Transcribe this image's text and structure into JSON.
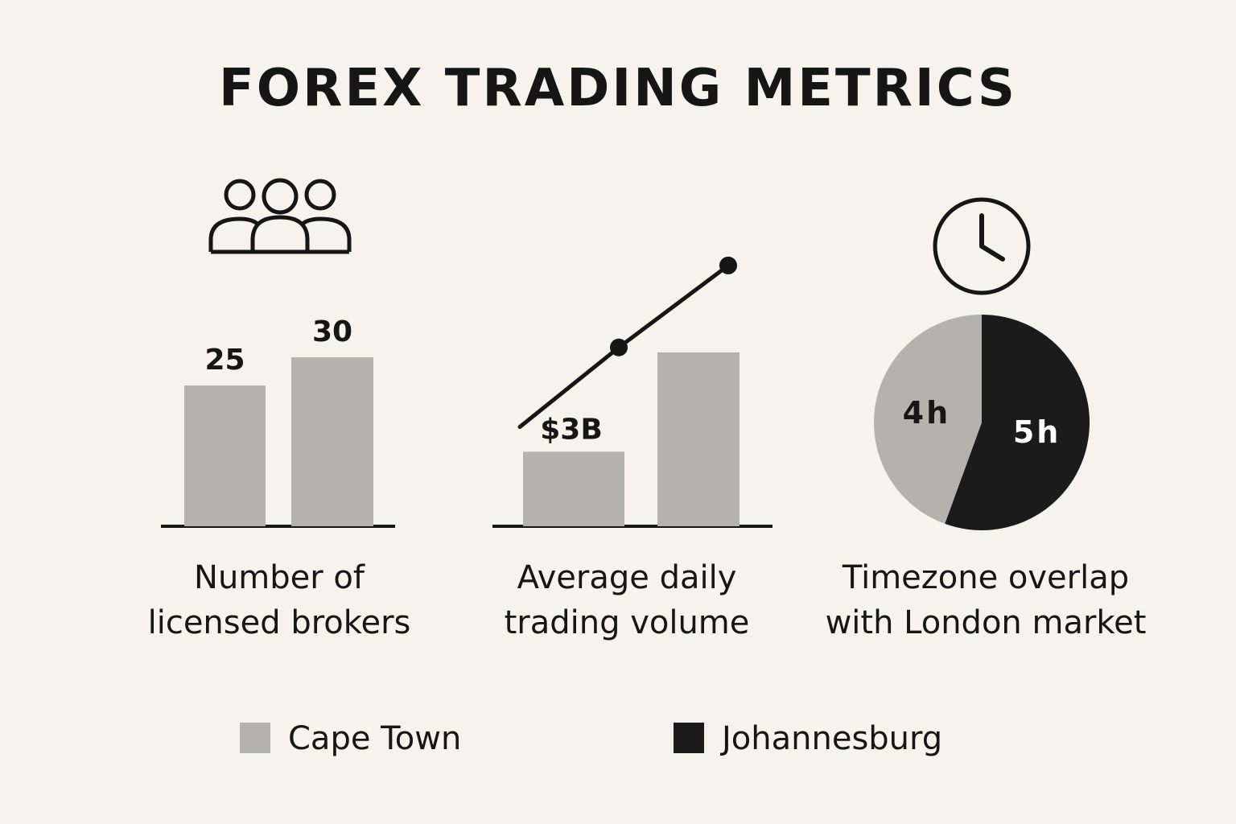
{
  "title": "FOREX TRADING METRICS",
  "colors": {
    "cape_town": "#b3b2ae",
    "johannesburg": "#1b1b1b",
    "ink": "#161616",
    "background": "#f6f2ec"
  },
  "icons": [
    "people-group-icon",
    "clock-icon"
  ],
  "legend": [
    {
      "label": "Cape Town",
      "color": "#b3b2ae"
    },
    {
      "label": "Johannesburg",
      "color": "#1b1b1b"
    }
  ],
  "chart_data": [
    {
      "type": "bar",
      "caption": [
        "Number of",
        "licensed brokers"
      ],
      "categories": [
        "",
        ""
      ],
      "values": [
        25,
        30
      ],
      "value_labels": [
        "25",
        "30"
      ],
      "ylim": [
        0,
        60
      ]
    },
    {
      "type": "bar",
      "caption": [
        "Average daily",
        "trading volume"
      ],
      "categories": [
        "",
        ""
      ],
      "values": [
        3,
        7
      ],
      "value_labels": [
        "$3B",
        ""
      ],
      "trend_points": [
        4,
        7.2,
        10.5
      ],
      "ylim": [
        0,
        12.7
      ]
    },
    {
      "type": "pie",
      "caption": [
        "Timezone overlap",
        "with London market"
      ],
      "slices": [
        {
          "label": "5h",
          "value": 5,
          "color": "#1b1b1b"
        },
        {
          "label": "4h",
          "value": 4,
          "color": "#b3b2ae"
        }
      ]
    }
  ]
}
